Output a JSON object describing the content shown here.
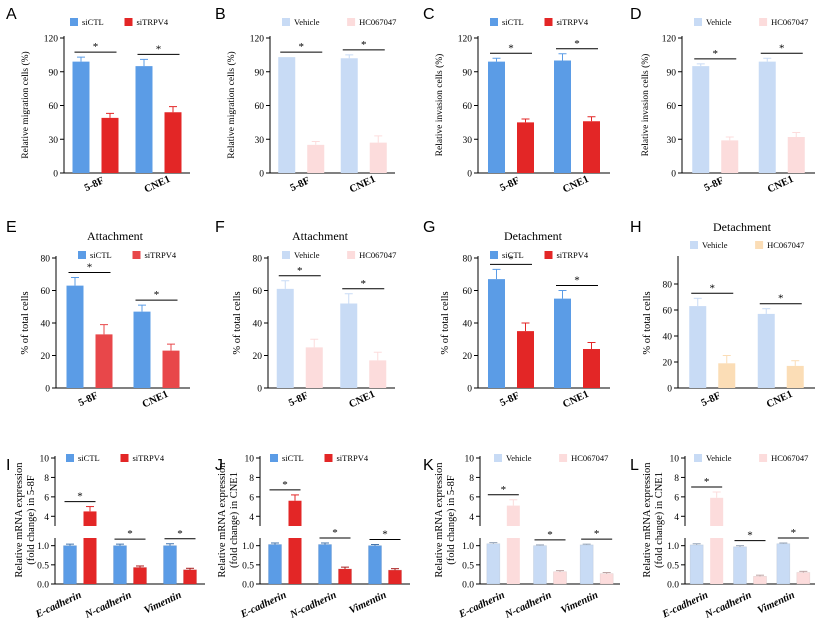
{
  "figure": {
    "colors": {
      "siCTL": "#5B9CE6",
      "siTRPV4": "#E32626",
      "Vehicle": "#C8DBF5",
      "HC067047": "#FCDCDC",
      "HC067047_peach": "#FBDDB6",
      "siTRPV4_light": "#E8474A"
    }
  },
  "chart_data": [
    {
      "id": "A",
      "type": "bar",
      "panel_label": "A",
      "title": "",
      "ylabel": "Relative migration cells (%)",
      "categories": [
        "5-8F",
        "CNE1"
      ],
      "ylim": [
        0,
        120
      ],
      "yticks": [
        "0",
        "30",
        "60",
        "90",
        "120"
      ],
      "series": [
        {
          "name": "siCTL",
          "color_key": "siCTL",
          "values": [
            99,
            95
          ],
          "errors": [
            4,
            6
          ]
        },
        {
          "name": "siTRPV4",
          "color_key": "siTRPV4",
          "values": [
            49,
            54
          ],
          "errors": [
            4,
            5
          ]
        }
      ],
      "significance": [
        "*",
        "*"
      ]
    },
    {
      "id": "B",
      "type": "bar",
      "panel_label": "B",
      "title": "",
      "ylabel": "Relative migration cells (%)",
      "categories": [
        "5-8F",
        "CNE1"
      ],
      "ylim": [
        0,
        120
      ],
      "yticks": [
        "0",
        "30",
        "60",
        "90",
        "120"
      ],
      "series": [
        {
          "name": "Vehicle",
          "color_key": "Vehicle",
          "values": [
            103,
            102
          ],
          "errors": [
            0,
            3
          ]
        },
        {
          "name": "HC067047",
          "color_key": "HC067047",
          "values": [
            25,
            27
          ],
          "errors": [
            3,
            6
          ]
        }
      ],
      "significance": [
        "*",
        "*"
      ]
    },
    {
      "id": "C",
      "type": "bar",
      "panel_label": "C",
      "title": "",
      "ylabel": "Relative invasion cells (%)",
      "categories": [
        "5-8F",
        "CNE1"
      ],
      "ylim": [
        0,
        120
      ],
      "yticks": [
        "0",
        "30",
        "60",
        "90",
        "120"
      ],
      "series": [
        {
          "name": "siCTL",
          "color_key": "siCTL",
          "values": [
            99,
            100
          ],
          "errors": [
            3,
            6
          ]
        },
        {
          "name": "siTRPV4",
          "color_key": "siTRPV4",
          "values": [
            45,
            46
          ],
          "errors": [
            3,
            4
          ]
        }
      ],
      "significance": [
        "*",
        "*"
      ]
    },
    {
      "id": "D",
      "type": "bar",
      "panel_label": "D",
      "title": "",
      "ylabel": "Relative invasion cells (%)",
      "categories": [
        "5-8F",
        "CNE1"
      ],
      "ylim": [
        0,
        120
      ],
      "yticks": [
        "0",
        "30",
        "60",
        "90",
        "120"
      ],
      "series": [
        {
          "name": "Vehicle",
          "color_key": "Vehicle",
          "values": [
            95,
            99
          ],
          "errors": [
            2,
            3
          ]
        },
        {
          "name": "HC067047",
          "color_key": "HC067047",
          "values": [
            29,
            32
          ],
          "errors": [
            3,
            4
          ]
        }
      ],
      "significance": [
        "*",
        "*"
      ]
    },
    {
      "id": "E",
      "type": "bar",
      "panel_label": "E",
      "title": "Attachment",
      "ylabel": "% of total cells",
      "categories": [
        "5-8F",
        "CNE1"
      ],
      "ylim": [
        0,
        80
      ],
      "yticks": [
        "0",
        "20",
        "40",
        "60",
        "80"
      ],
      "series": [
        {
          "name": "siCTL",
          "color_key": "siCTL",
          "values": [
            63,
            47
          ],
          "errors": [
            5,
            4
          ]
        },
        {
          "name": "siTRPV4",
          "color_key": "siTRPV4_light",
          "values": [
            33,
            23
          ],
          "errors": [
            6,
            4
          ]
        }
      ],
      "significance": [
        "*",
        "*"
      ]
    },
    {
      "id": "F",
      "type": "bar",
      "panel_label": "F",
      "title": "Attachment",
      "ylabel": "% of total cells",
      "categories": [
        "5-8F",
        "CNE1"
      ],
      "ylim": [
        0,
        80
      ],
      "yticks": [
        "0",
        "20",
        "40",
        "60",
        "80"
      ],
      "series": [
        {
          "name": "Vehicle",
          "color_key": "Vehicle",
          "values": [
            61,
            52
          ],
          "errors": [
            5,
            6
          ]
        },
        {
          "name": "HC067047",
          "color_key": "HC067047",
          "values": [
            25,
            17
          ],
          "errors": [
            5,
            5
          ]
        }
      ],
      "significance": [
        "*",
        "*"
      ]
    },
    {
      "id": "G",
      "type": "bar",
      "panel_label": "G",
      "title": "Detachment",
      "ylabel": "% of total cells",
      "categories": [
        "5-8F",
        "CNE1"
      ],
      "ylim": [
        0,
        80
      ],
      "yticks": [
        "0",
        "20",
        "40",
        "60",
        "80"
      ],
      "series": [
        {
          "name": "siCTL",
          "color_key": "siCTL",
          "values": [
            67,
            55
          ],
          "errors": [
            6,
            5
          ]
        },
        {
          "name": "siTRPV4",
          "color_key": "siTRPV4",
          "values": [
            35,
            24
          ],
          "errors": [
            5,
            4
          ]
        }
      ],
      "significance": [
        "*",
        "*"
      ]
    },
    {
      "id": "H",
      "type": "bar",
      "panel_label": "H",
      "title": "Detachment",
      "ylabel": "% of total cells",
      "categories": [
        "5-8F",
        "CNE1"
      ],
      "ylim": [
        0,
        100
      ],
      "yticks": [
        "0",
        "20",
        "40",
        "60",
        "80"
      ],
      "series": [
        {
          "name": "Vehicle",
          "color_key": "Vehicle",
          "values": [
            63,
            57
          ],
          "errors": [
            6,
            4
          ]
        },
        {
          "name": "HC067047",
          "color_key": "HC067047_peach",
          "values": [
            19,
            17
          ],
          "errors": [
            6,
            4
          ]
        }
      ],
      "significance": [
        "*",
        "*"
      ]
    },
    {
      "id": "I",
      "type": "bar",
      "panel_label": "I",
      "title": "",
      "ylabel": [
        "Relative mRNA expression",
        "(fold change) in 5-8F"
      ],
      "categories": [
        "E-cadherin",
        "N-cadherin",
        "Vimentin"
      ],
      "y_broken_axis": {
        "lower": [
          0,
          1.2
        ],
        "upper": [
          3,
          10
        ]
      },
      "yticks_lower": [
        "0.0",
        "0.5",
        "1.0"
      ],
      "yticks_upper": [
        "4",
        "6",
        "8",
        "10"
      ],
      "series": [
        {
          "name": "siCTL",
          "color_key": "siCTL",
          "values": [
            1.0,
            1.0,
            1.0
          ],
          "errors": [
            0.04,
            0.04,
            0.05
          ]
        },
        {
          "name": "siTRPV4",
          "color_key": "siTRPV4",
          "values": [
            4.5,
            0.43,
            0.37
          ],
          "errors": [
            0.5,
            0.04,
            0.04
          ]
        }
      ],
      "significance": [
        "*",
        "*",
        "*"
      ]
    },
    {
      "id": "J",
      "type": "bar",
      "panel_label": "J",
      "title": "",
      "ylabel": [
        "Relative mRNA expression",
        "(fold change) in CNE1"
      ],
      "categories": [
        "E-cadherin",
        "N-cadherin",
        "Vimentin"
      ],
      "y_broken_axis": {
        "lower": [
          0,
          1.2
        ],
        "upper": [
          3,
          10
        ]
      },
      "yticks_lower": [
        "0.0",
        "0.5",
        "1.0"
      ],
      "yticks_upper": [
        "4",
        "6",
        "8",
        "10"
      ],
      "series": [
        {
          "name": "siCTL",
          "color_key": "siCTL",
          "values": [
            1.03,
            1.03,
            1.0
          ],
          "errors": [
            0.04,
            0.04,
            0.03
          ]
        },
        {
          "name": "siTRPV4",
          "color_key": "siTRPV4",
          "values": [
            5.6,
            0.39,
            0.36
          ],
          "errors": [
            0.6,
            0.05,
            0.04
          ]
        }
      ],
      "significance": [
        "*",
        "*",
        "*"
      ]
    },
    {
      "id": "K",
      "type": "bar",
      "panel_label": "K",
      "title": "",
      "ylabel": [
        "Relative mRNA expression",
        "(fold change) in 5-8F"
      ],
      "categories": [
        "E-cadherin",
        "N-cadherin",
        "Vimentin"
      ],
      "y_broken_axis": {
        "lower": [
          0,
          1.2
        ],
        "upper": [
          3,
          10
        ]
      },
      "yticks_lower": [
        "0.0",
        "0.5",
        "1.0"
      ],
      "yticks_upper": [
        "4",
        "6",
        "8",
        "10"
      ],
      "series": [
        {
          "name": "Vehicle",
          "color_key": "Vehicle",
          "values": [
            1.05,
            1.0,
            1.02
          ],
          "errors": [
            0.03,
            0.02,
            0.02
          ]
        },
        {
          "name": "HC067047",
          "color_key": "HC067047",
          "values": [
            5.1,
            0.32,
            0.27
          ],
          "errors": [
            0.6,
            0.03,
            0.03
          ]
        }
      ],
      "significance": [
        "*",
        "*",
        "*"
      ]
    },
    {
      "id": "L",
      "type": "bar",
      "panel_label": "L",
      "title": "",
      "ylabel": [
        "Relative mRNA expression",
        "(fold change) in CNE1"
      ],
      "categories": [
        "E-cadherin",
        "N-cadherin",
        "Vimentin"
      ],
      "y_broken_axis": {
        "lower": [
          0,
          1.2
        ],
        "upper": [
          3,
          10
        ]
      },
      "yticks_lower": [
        "0.0",
        "0.5",
        "1.0"
      ],
      "yticks_upper": [
        "4",
        "6",
        "8",
        "10"
      ],
      "series": [
        {
          "name": "Vehicle",
          "color_key": "Vehicle",
          "values": [
            1.02,
            0.97,
            1.05
          ],
          "errors": [
            0.03,
            0.03,
            0.02
          ]
        },
        {
          "name": "HC067047",
          "color_key": "HC067047",
          "values": [
            5.9,
            0.2,
            0.3
          ],
          "errors": [
            0.6,
            0.03,
            0.03
          ]
        }
      ],
      "significance": [
        "*",
        "*",
        "*"
      ]
    }
  ]
}
